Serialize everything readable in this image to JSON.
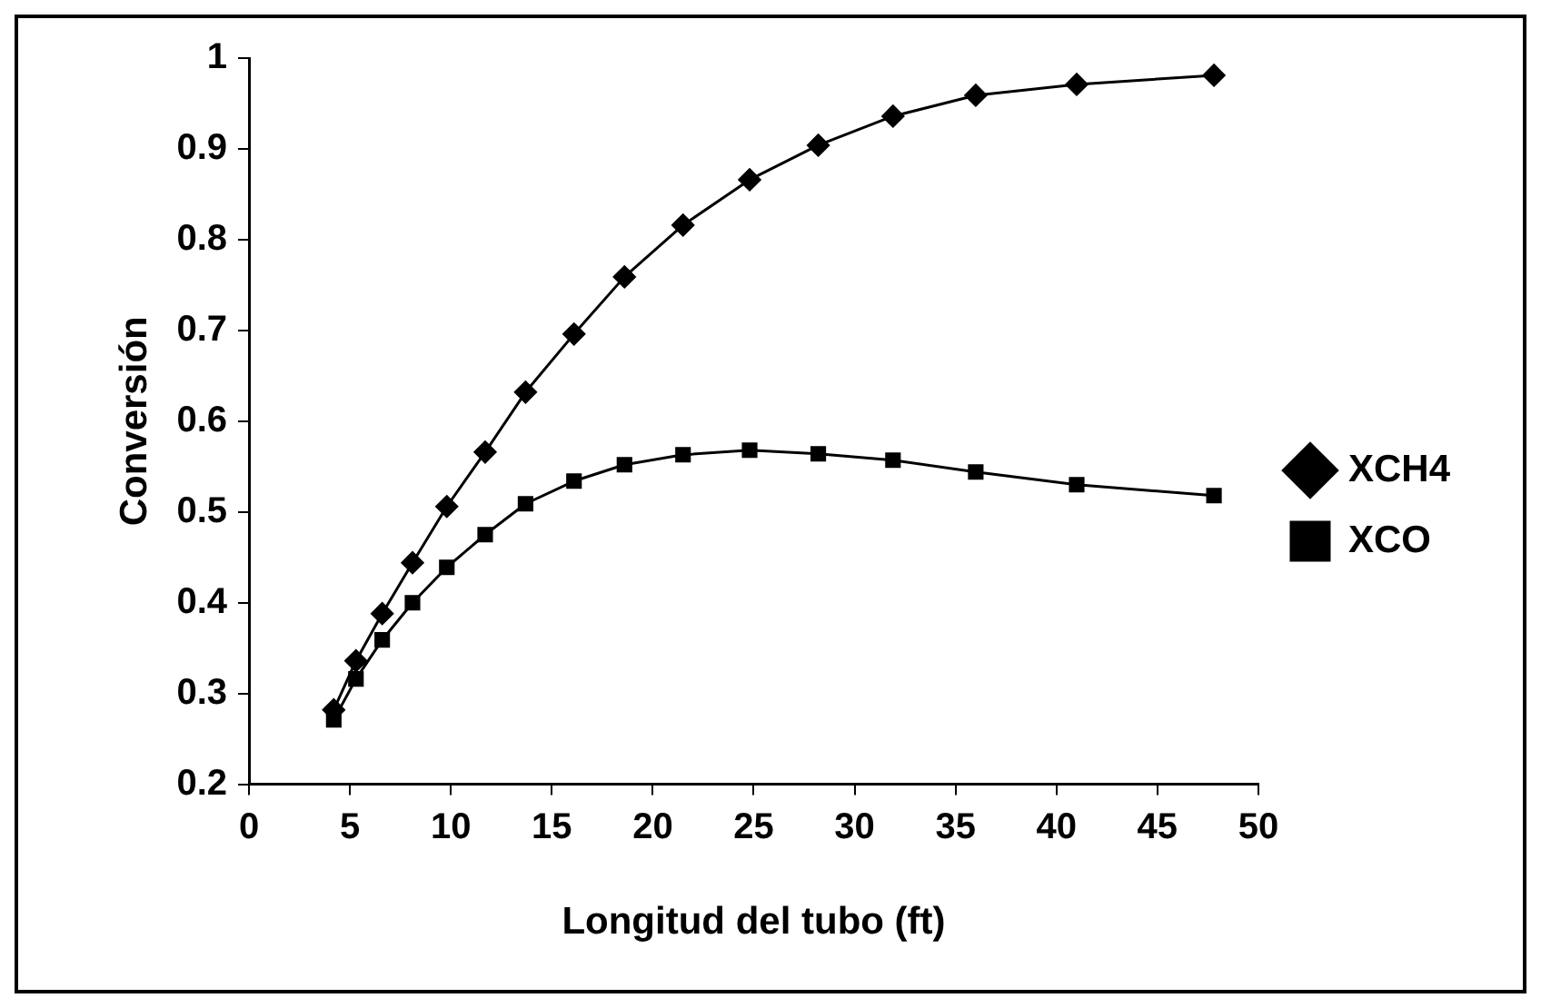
{
  "chart_data": {
    "type": "line",
    "xlabel": "Longitud del tubo (ft)",
    "ylabel": "Conversión",
    "xlim": [
      0,
      50
    ],
    "xticks": [
      0,
      5,
      10,
      15,
      20,
      25,
      30,
      35,
      40,
      45,
      50
    ],
    "ylim": [
      0.2,
      1
    ],
    "yticks": [
      0.2,
      0.3,
      0.4,
      0.5,
      0.6,
      0.7,
      0.8,
      0.9,
      1
    ],
    "grid": false,
    "legend": "right",
    "line_style": "solid",
    "x": [
      4.2,
      5.3,
      6.6,
      8.1,
      9.8,
      11.7,
      13.7,
      16.1,
      18.6,
      21.5,
      24.8,
      28.2,
      31.9,
      36.0,
      41.0,
      47.8
    ],
    "series": [
      {
        "name": "XCH4",
        "color": "#000000",
        "marker": "diamond",
        "values": [
          0.282,
          0.336,
          0.388,
          0.444,
          0.506,
          0.566,
          0.632,
          0.696,
          0.759,
          0.816,
          0.866,
          0.904,
          0.936,
          0.959,
          0.971,
          0.981
        ]
      },
      {
        "name": "XCO",
        "color": "#000000",
        "marker": "square",
        "values": [
          0.271,
          0.316,
          0.359,
          0.4,
          0.439,
          0.475,
          0.509,
          0.534,
          0.552,
          0.563,
          0.568,
          0.564,
          0.557,
          0.544,
          0.53,
          0.518
        ]
      }
    ]
  }
}
